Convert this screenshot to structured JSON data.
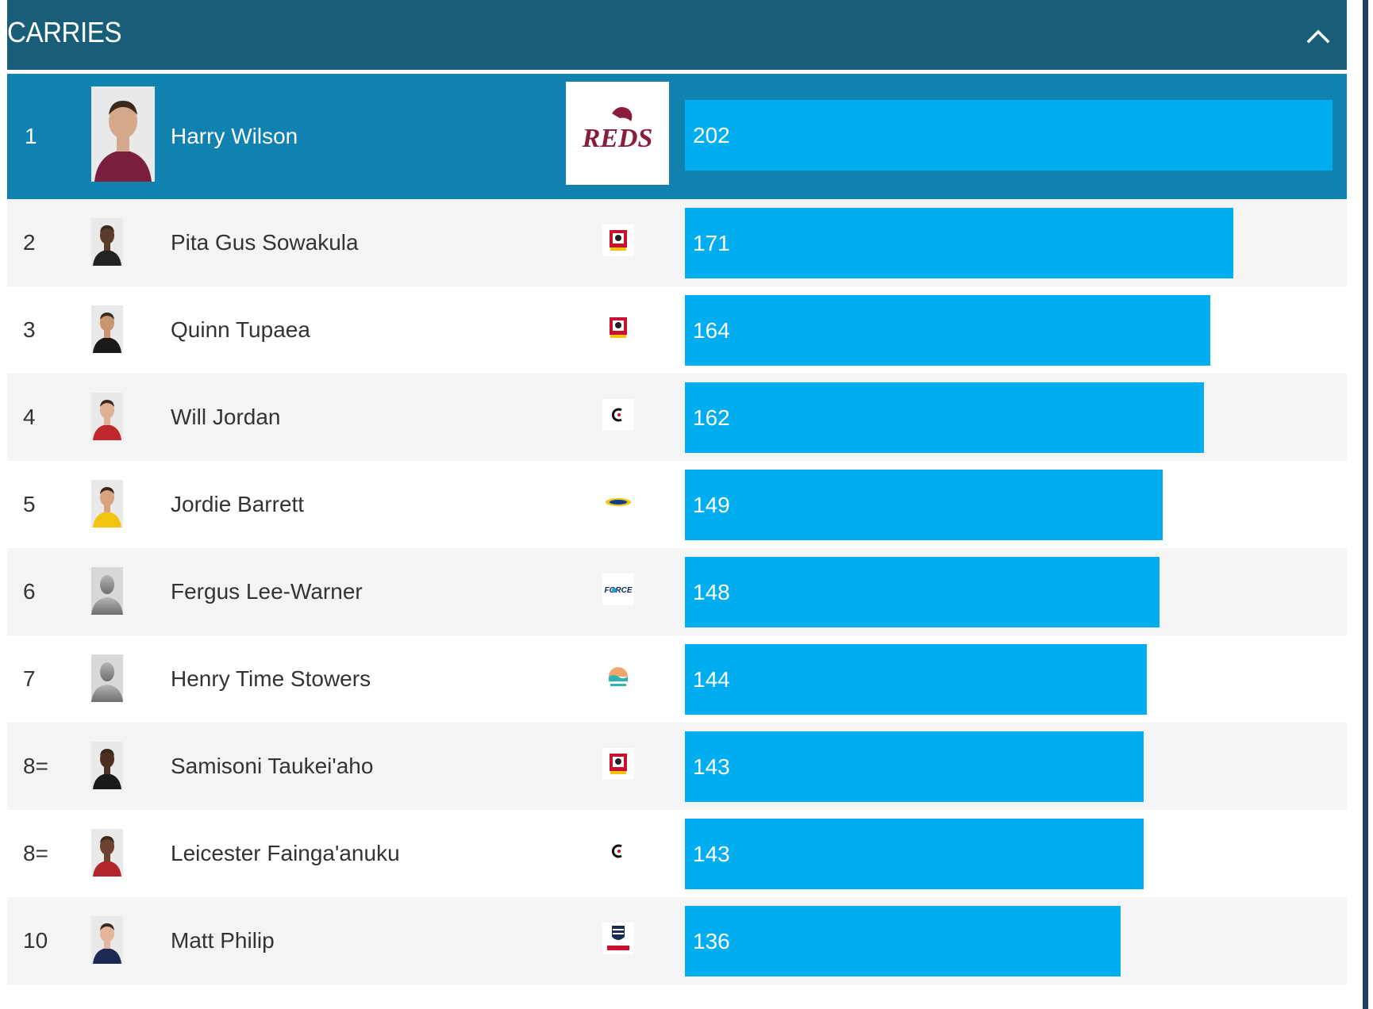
{
  "header": {
    "title": "CARRIES"
  },
  "colors": {
    "header_bg": "#185e78",
    "top_row_bg": "#1182b0",
    "bar": "#00aeef",
    "row_bg": "#f4f4f4",
    "row_alt_bg": "#ffffff"
  },
  "chart_data": {
    "type": "bar",
    "orientation": "horizontal",
    "title": "CARRIES",
    "categories": [
      "Harry Wilson",
      "Pita Gus Sowakula",
      "Quinn Tupaea",
      "Will Jordan",
      "Jordie Barrett",
      "Fergus Lee-Warner",
      "Henry Time Stowers",
      "Samisoni Taukei'aho",
      "Leicester Fainga'anuku",
      "Matt Philip"
    ],
    "values": [
      202,
      171,
      164,
      162,
      149,
      148,
      144,
      143,
      143,
      136
    ],
    "xlim": [
      0,
      202
    ]
  },
  "rows": [
    {
      "rank": "1",
      "name": "Harry Wilson",
      "value": "202",
      "team_icon": "reds-logo-icon",
      "photo": "player-photo"
    },
    {
      "rank": "2",
      "name": "Pita Gus Sowakula",
      "value": "171",
      "team_icon": "chiefs-logo-icon",
      "photo": "player-photo"
    },
    {
      "rank": "3",
      "name": "Quinn Tupaea",
      "value": "164",
      "team_icon": "chiefs-logo-icon",
      "photo": "player-photo"
    },
    {
      "rank": "4",
      "name": "Will Jordan",
      "value": "162",
      "team_icon": "crusaders-logo-icon",
      "photo": "player-photo"
    },
    {
      "rank": "5",
      "name": "Jordie Barrett",
      "value": "149",
      "team_icon": "hurricanes-logo-icon",
      "photo": "player-photo"
    },
    {
      "rank": "6",
      "name": "Fergus Lee-Warner",
      "value": "148",
      "team_icon": "force-logo-icon",
      "photo": "placeholder-silhouette"
    },
    {
      "rank": "7",
      "name": "Henry Time Stowers",
      "value": "144",
      "team_icon": "moana-pasifika-logo-icon",
      "photo": "placeholder-silhouette"
    },
    {
      "rank": "8=",
      "name": "Samisoni Taukei'aho",
      "value": "143",
      "team_icon": "chiefs-logo-icon",
      "photo": "player-photo"
    },
    {
      "rank": "8=",
      "name": "Leicester Fainga'anuku",
      "value": "143",
      "team_icon": "crusaders-logo-icon",
      "photo": "player-photo"
    },
    {
      "rank": "10",
      "name": "Matt Philip",
      "value": "136",
      "team_icon": "rebels-logo-icon",
      "photo": "player-photo"
    }
  ],
  "icons": {
    "collapse": "chevron-up-icon"
  }
}
